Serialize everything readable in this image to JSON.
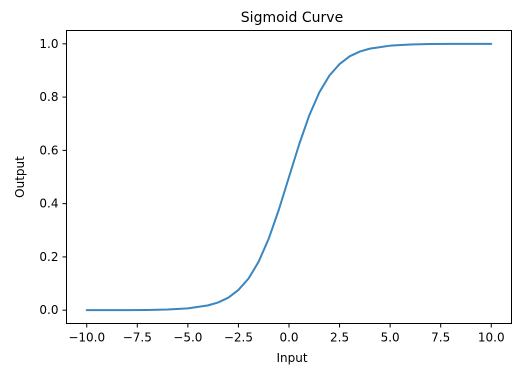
{
  "chart_data": {
    "type": "line",
    "title": "Sigmoid Curve",
    "xlabel": "Input",
    "ylabel": "Output",
    "xlim": [
      -11.0,
      11.0
    ],
    "ylim": [
      -0.05,
      1.05
    ],
    "xticks": [
      -10.0,
      -7.5,
      -5.0,
      -2.5,
      0.0,
      2.5,
      5.0,
      7.5,
      10.0
    ],
    "xtick_labels": [
      "−10.0",
      "−7.5",
      "−5.0",
      "−2.5",
      "0.0",
      "2.5",
      "5.0",
      "7.5",
      "10.0"
    ],
    "yticks": [
      0.0,
      0.2,
      0.4,
      0.6,
      0.8,
      1.0
    ],
    "ytick_labels": [
      "0.0",
      "0.2",
      "0.4",
      "0.6",
      "0.8",
      "1.0"
    ],
    "grid": false,
    "legend": "none",
    "line_color": "#3a86c0",
    "series": [
      {
        "x": [
          -10.0,
          -9.0,
          -8.0,
          -7.0,
          -6.0,
          -5.0,
          -4.0,
          -3.5,
          -3.0,
          -2.5,
          -2.0,
          -1.5,
          -1.0,
          -0.5,
          0.0,
          0.5,
          1.0,
          1.5,
          2.0,
          2.5,
          3.0,
          3.5,
          4.0,
          5.0,
          6.0,
          7.0,
          8.0,
          9.0,
          10.0
        ],
        "y": [
          0.0,
          0.0001,
          0.0003,
          0.0009,
          0.0025,
          0.0067,
          0.018,
          0.029,
          0.047,
          0.076,
          0.119,
          0.182,
          0.269,
          0.378,
          0.5,
          0.622,
          0.731,
          0.818,
          0.881,
          0.924,
          0.953,
          0.971,
          0.982,
          0.993,
          0.9975,
          0.9991,
          0.9997,
          0.9999,
          1.0
        ]
      }
    ]
  }
}
